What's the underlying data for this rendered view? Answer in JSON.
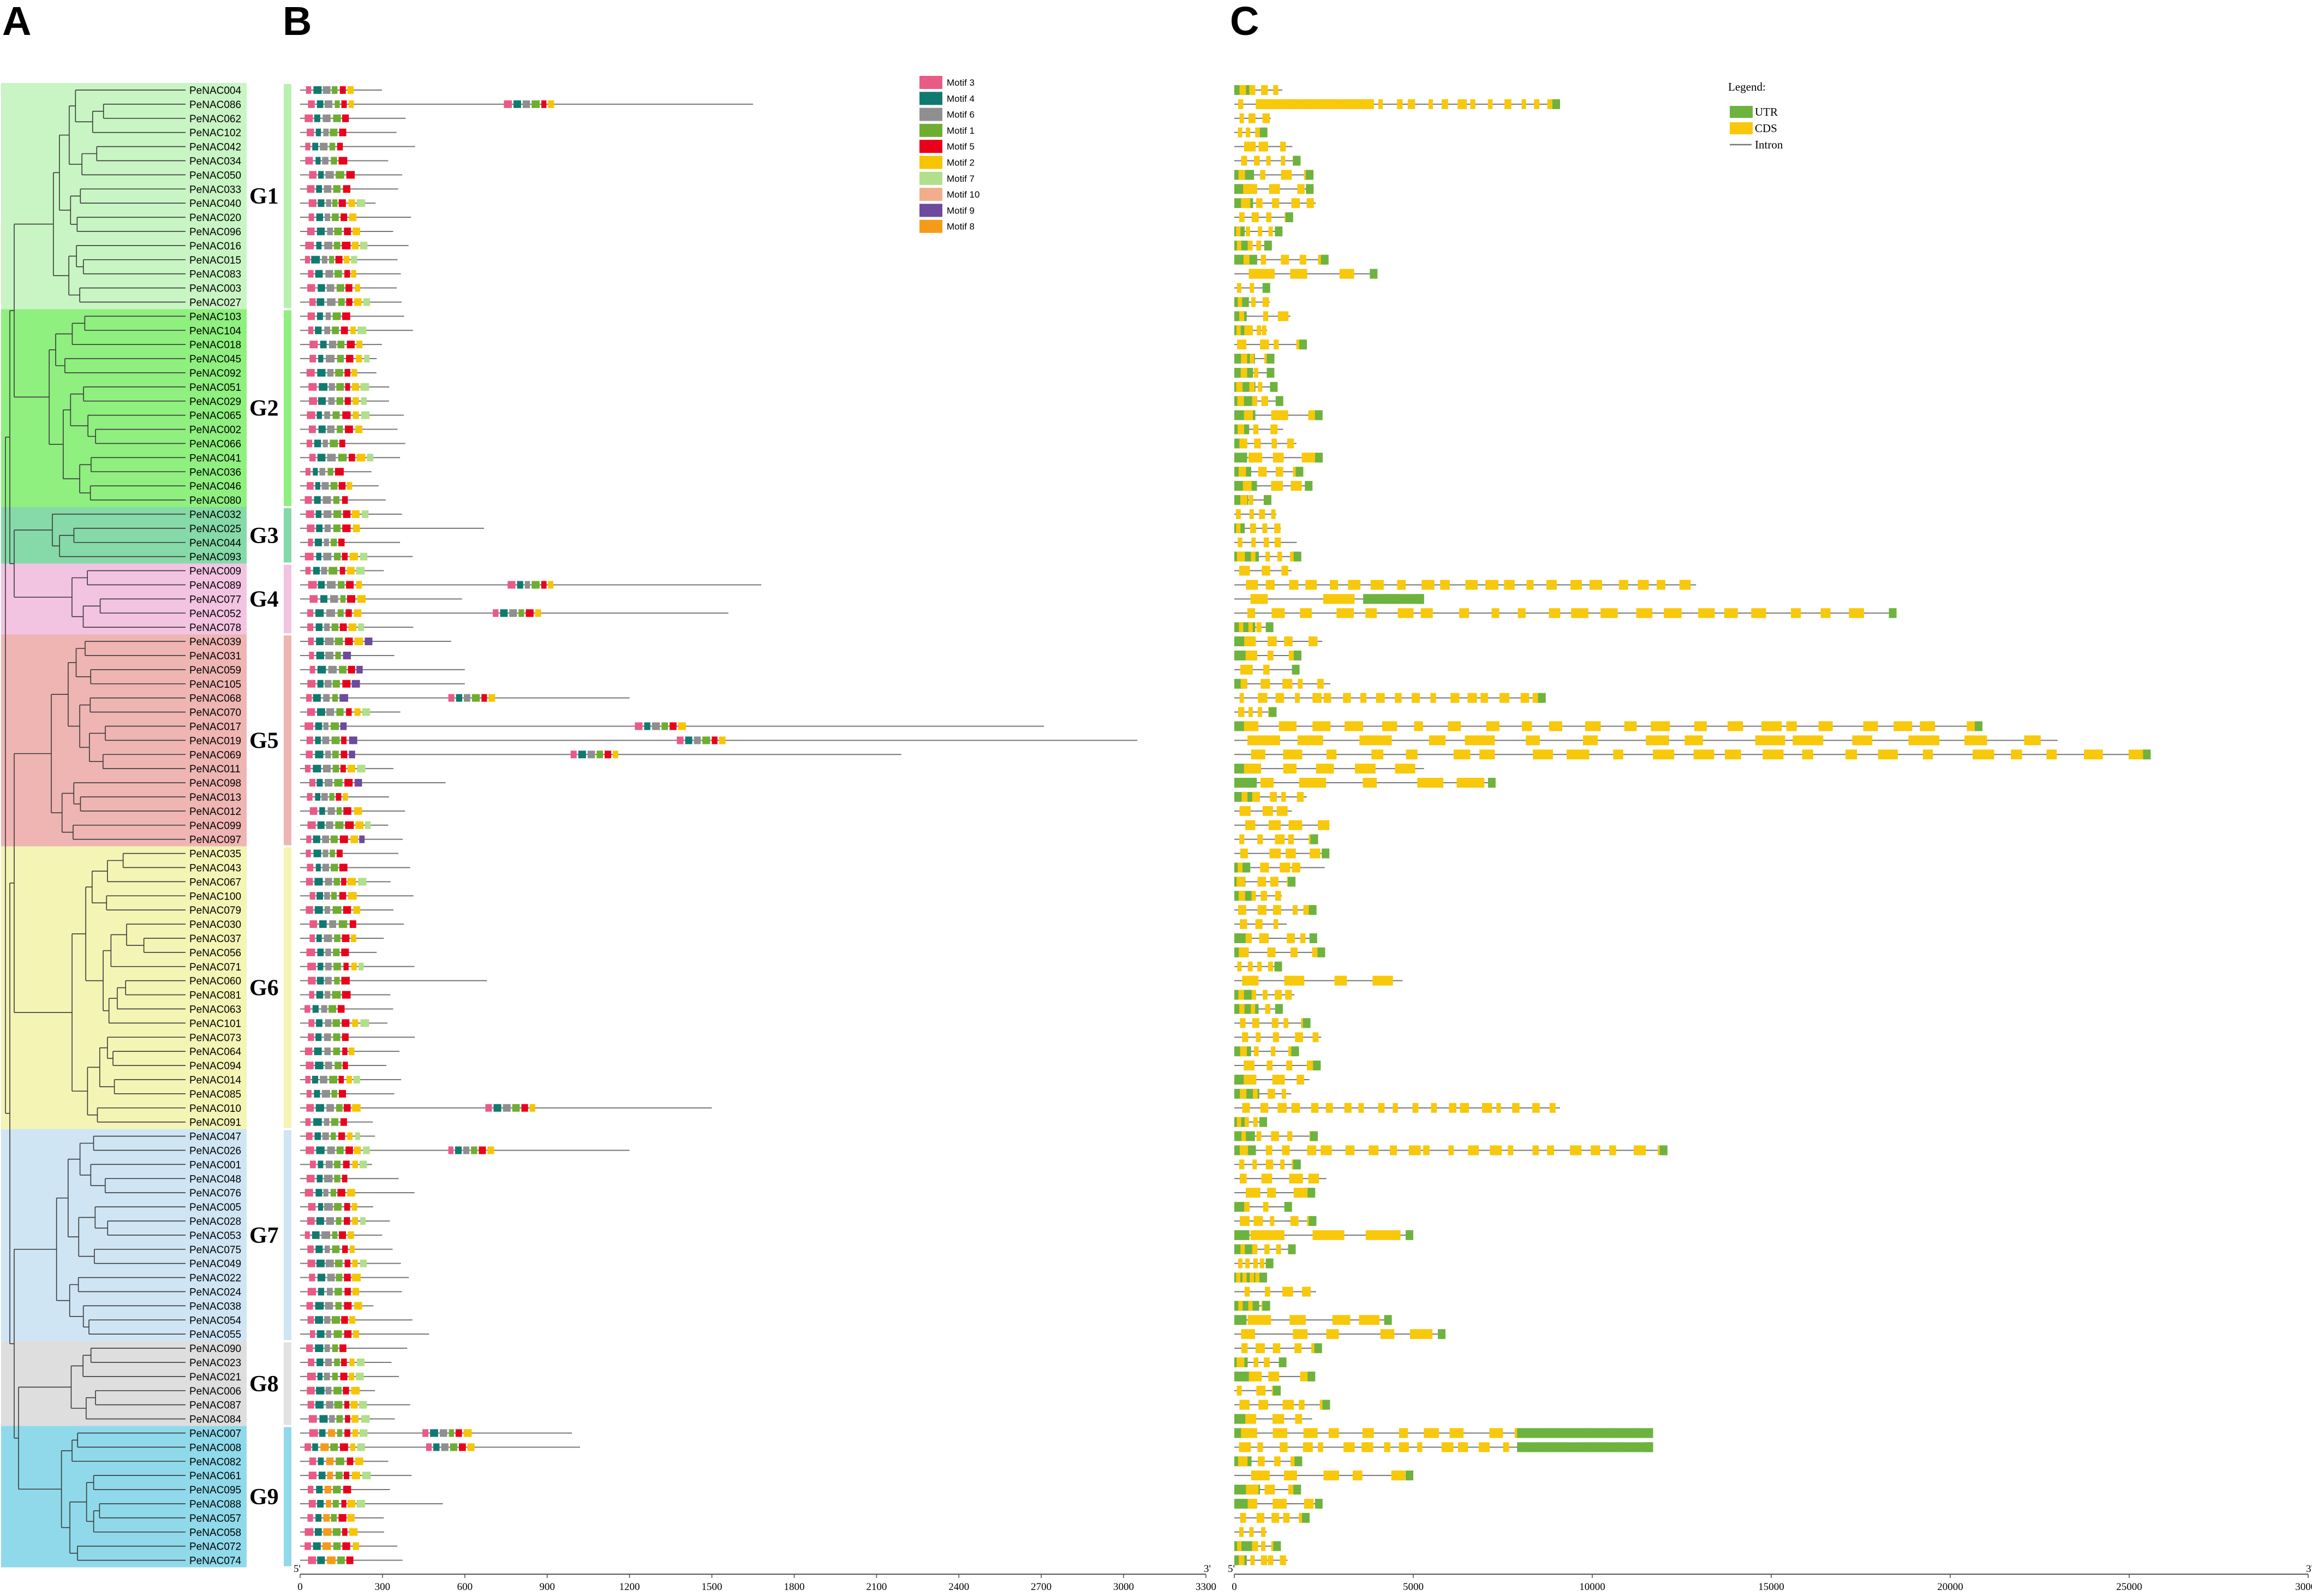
{
  "panels": [
    "A",
    "B",
    "C"
  ],
  "groups": [
    {
      "label": "G1",
      "color": "#c8f5c3",
      "strip": "#b8f0b0",
      "genes": [
        "PeNAC004",
        "PeNAC086",
        "PeNAC062",
        "PeNAC102",
        "PeNAC042",
        "PeNAC034",
        "PeNAC050",
        "PeNAC033",
        "PeNAC040",
        "PeNAC020",
        "PeNAC096",
        "PeNAC016",
        "PeNAC015",
        "PeNAC083",
        "PeNAC003",
        "PeNAC027"
      ]
    },
    {
      "label": "G2",
      "color": "#8fef7f",
      "strip": "#8fef7f",
      "genes": [
        "PeNAC103",
        "PeNAC104",
        "PeNAC018",
        "PeNAC045",
        "PeNAC092",
        "PeNAC051",
        "PeNAC029",
        "PeNAC065",
        "PeNAC002",
        "PeNAC066",
        "PeNAC041",
        "PeNAC036",
        "PeNAC046",
        "PeNAC080"
      ]
    },
    {
      "label": "G3",
      "color": "#86d9a8",
      "strip": "#86d9a8",
      "genes": [
        "PeNAC032",
        "PeNAC025",
        "PeNAC044",
        "PeNAC093"
      ]
    },
    {
      "label": "G4",
      "color": "#f3c3e2",
      "strip": "#f3c3e2",
      "genes": [
        "PeNAC009",
        "PeNAC089",
        "PeNAC077",
        "PeNAC052",
        "PeNAC078"
      ]
    },
    {
      "label": "G5",
      "color": "#eeb5b3",
      "strip": "#eeb5b3",
      "genes": [
        "PeNAC039",
        "PeNAC031",
        "PeNAC059",
        "PeNAC105",
        "PeNAC068",
        "PeNAC070",
        "PeNAC017",
        "PeNAC019",
        "PeNAC069",
        "PeNAC011",
        "PeNAC098",
        "PeNAC013",
        "PeNAC012",
        "PeNAC099",
        "PeNAC097"
      ]
    },
    {
      "label": "G6",
      "color": "#f4f4b5",
      "strip": "#f4f4b5",
      "genes": [
        "PeNAC035",
        "PeNAC043",
        "PeNAC067",
        "PeNAC100",
        "PeNAC079",
        "PeNAC030",
        "PeNAC037",
        "PeNAC056",
        "PeNAC071",
        "PeNAC060",
        "PeNAC081",
        "PeNAC063",
        "PeNAC101",
        "PeNAC073",
        "PeNAC064",
        "PeNAC094",
        "PeNAC014",
        "PeNAC085",
        "PeNAC010",
        "PeNAC091"
      ]
    },
    {
      "label": "G7",
      "color": "#cfe5f4",
      "strip": "#cfe5f4",
      "genes": [
        "PeNAC047",
        "PeNAC026",
        "PeNAC001",
        "PeNAC048",
        "PeNAC076",
        "PeNAC005",
        "PeNAC028",
        "PeNAC053",
        "PeNAC075",
        "PeNAC049",
        "PeNAC022",
        "PeNAC024",
        "PeNAC038",
        "PeNAC054",
        "PeNAC055"
      ]
    },
    {
      "label": "G8",
      "color": "#dedede",
      "strip": "#e2e2e2",
      "genes": [
        "PeNAC090",
        "PeNAC023",
        "PeNAC021",
        "PeNAC006",
        "PeNAC087",
        "PeNAC084"
      ]
    },
    {
      "label": "G9",
      "color": "#8fd9ea",
      "strip": "#8fd9ea",
      "genes": [
        "PeNAC007",
        "PeNAC008",
        "PeNAC082",
        "PeNAC061",
        "PeNAC095",
        "PeNAC088",
        "PeNAC057",
        "PeNAC058",
        "PeNAC072",
        "PeNAC074"
      ]
    }
  ],
  "motif_legend": [
    {
      "label": "Motif 3",
      "color": "#ea5a87"
    },
    {
      "label": "Motif 4",
      "color": "#107a70"
    },
    {
      "label": "Motif 6",
      "color": "#8f8f8f"
    },
    {
      "label": "Motif 1",
      "color": "#6fad32"
    },
    {
      "label": "Motif 5",
      "color": "#e8001c"
    },
    {
      "label": "Motif 2",
      "color": "#f6c500"
    },
    {
      "label": "Motif 7",
      "color": "#b1df8b"
    },
    {
      "label": "Motif 10",
      "color": "#f2ae8c"
    },
    {
      "label": "Motif 9",
      "color": "#6c4a9d"
    },
    {
      "label": "Motif 8",
      "color": "#f59b1a"
    }
  ],
  "gene_legend": {
    "title": "Legend:",
    "items": [
      {
        "label": "UTR",
        "color": "#6db33f"
      },
      {
        "label": "CDS",
        "color": "#f8c80a"
      },
      {
        "label": "Intron",
        "color": "#777777"
      }
    ]
  },
  "chart_data": [
    {
      "type": "diagram",
      "panel": "B",
      "x_ticks": [
        0,
        300,
        600,
        900,
        1200,
        1500,
        1800,
        2100,
        2400,
        2700,
        3000,
        3300
      ],
      "xlim": [
        0,
        3300
      ],
      "end_labels": {
        "start": "5'",
        "end": "3'"
      }
    },
    {
      "type": "diagram",
      "panel": "C",
      "x_ticks": [
        0,
        5000,
        10000,
        15000,
        20000,
        25000,
        30000
      ],
      "xlim": [
        0,
        30000
      ],
      "end_labels": {
        "start": "5'",
        "end": "3'"
      }
    }
  ]
}
